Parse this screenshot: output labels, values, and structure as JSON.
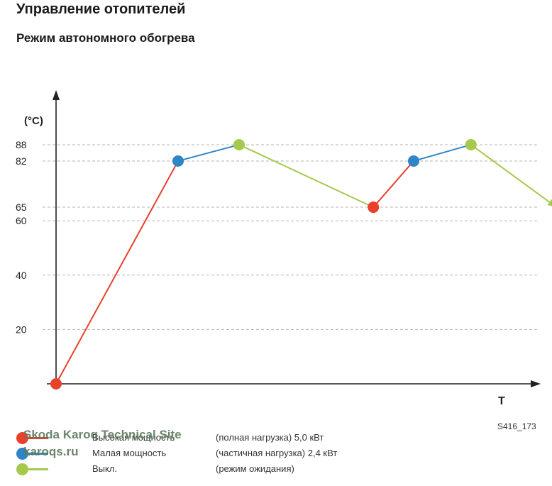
{
  "header": {
    "title": "Управление отопителей",
    "subtitle": "Режим автономного обогрева"
  },
  "chart_data": {
    "type": "line",
    "ylabel": "(°C)",
    "xlabel": "T",
    "y_ticks": [
      20,
      40,
      60,
      65,
      82,
      88
    ],
    "grid": true,
    "points": [
      {
        "x": 0,
        "y": 0,
        "mode": "high"
      },
      {
        "x": 1.0,
        "y": 82,
        "mode": "low"
      },
      {
        "x": 1.5,
        "y": 88,
        "mode": "off"
      },
      {
        "x": 2.6,
        "y": 65,
        "mode": "high"
      },
      {
        "x": 2.93,
        "y": 82,
        "mode": "low"
      },
      {
        "x": 3.4,
        "y": 88,
        "mode": "off"
      },
      {
        "x": 4.1,
        "y": 65,
        "mode": "end"
      }
    ],
    "colors": {
      "high": "#e8412c",
      "low": "#2f86c6",
      "off": "#a6c94c"
    }
  },
  "legend": [
    {
      "name": "Высокая мощность",
      "desc": "(полная нагрузка) 5,0 кВт",
      "color": "#e8412c"
    },
    {
      "name": "Малая мощность",
      "desc": "(частичная нагрузка) 2,4 кВт",
      "color": "#2f86c6"
    },
    {
      "name": "Выкл.",
      "desc": "(режим ожидания)",
      "color": "#a6c94c"
    }
  ],
  "figure_code": "S416_173",
  "watermark": {
    "line1": "Skoda Karoq Technical Site",
    "line2": "karoqs.ru"
  }
}
